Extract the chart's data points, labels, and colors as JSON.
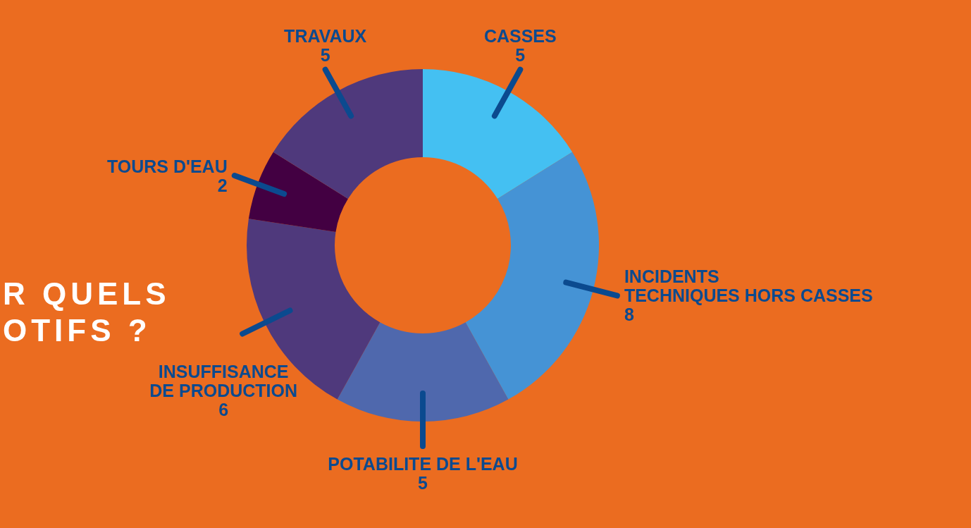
{
  "chart_data": {
    "type": "donut",
    "title": "R QUELS\nOTIFS ?",
    "categories": [
      "CASSES",
      "INCIDENTS\nTECHNIQUES HORS CASSES",
      "POTABILITE DE L'EAU",
      "INSUFFISANCE\nDE PRODUCTION",
      "TOURS D'EAU",
      "TRAVAUX"
    ],
    "values": [
      5,
      8,
      5,
      6,
      2,
      5
    ],
    "colors": [
      "#44c0f2",
      "#4593d5",
      "#4f68ad",
      "#4f397c",
      "#430042",
      "#4f397c"
    ],
    "data_labels": true
  }
}
